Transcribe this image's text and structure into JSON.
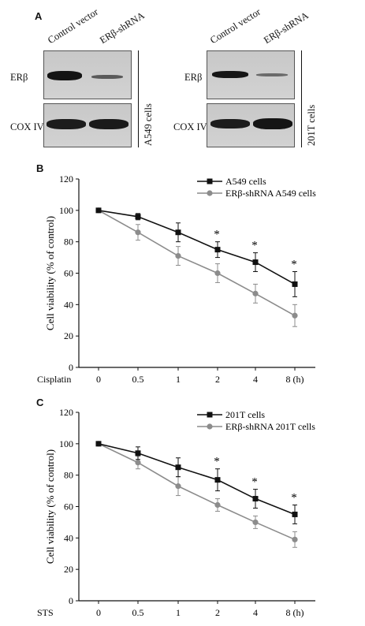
{
  "panel_a": {
    "letter": "A",
    "lanes": [
      "Control vector",
      "ERβ-shRNA"
    ],
    "rows": [
      "ERβ",
      "COX IV"
    ],
    "cells_left": "A549 cells",
    "cells_right": "201T cells"
  },
  "chart_data": [
    {
      "panel": "B",
      "type": "line",
      "categories": [
        "0",
        "0.5",
        "1",
        "2",
        "4",
        "8 (h)"
      ],
      "x_treatment_label": "Cisplatin",
      "ylabel": "Cell viability (% of control)",
      "ylim": [
        0,
        120
      ],
      "yticks": [
        "0",
        "20",
        "40",
        "60",
        "80",
        "100",
        "120"
      ],
      "legend_position": "top-right",
      "significance": [
        "",
        "",
        "",
        "*",
        "*",
        "*"
      ],
      "series": [
        {
          "name": "A549 cells",
          "color": "#111111",
          "marker": "square",
          "values": [
            100,
            96,
            86,
            75,
            67,
            53
          ],
          "errors": [
            0,
            2,
            6,
            5,
            6,
            8
          ]
        },
        {
          "name": "ERβ-shRNA A549 cells",
          "color": "#8c8c8c",
          "marker": "circle",
          "values": [
            100,
            86,
            71,
            60,
            47,
            33
          ],
          "errors": [
            0,
            5,
            6,
            6,
            6,
            7
          ]
        }
      ]
    },
    {
      "panel": "C",
      "type": "line",
      "categories": [
        "0",
        "0.5",
        "1",
        "2",
        "4",
        "8 (h)"
      ],
      "x_treatment_label": "STS",
      "ylabel": "Cell viability (% of control)",
      "ylim": [
        0,
        120
      ],
      "yticks": [
        "0",
        "20",
        "40",
        "60",
        "80",
        "100",
        "120"
      ],
      "legend_position": "top-right",
      "significance": [
        "",
        "",
        "",
        "*",
        "*",
        "*"
      ],
      "series": [
        {
          "name": "201T cells",
          "color": "#111111",
          "marker": "square",
          "values": [
            100,
            94,
            85,
            77,
            65,
            55
          ],
          "errors": [
            0,
            4,
            6,
            7,
            6,
            6
          ]
        },
        {
          "name": "ERβ-shRNA 201T cells",
          "color": "#8c8c8c",
          "marker": "circle",
          "values": [
            100,
            88,
            73,
            61,
            50,
            39
          ],
          "errors": [
            0,
            4,
            6,
            4,
            4,
            5
          ]
        }
      ]
    }
  ]
}
